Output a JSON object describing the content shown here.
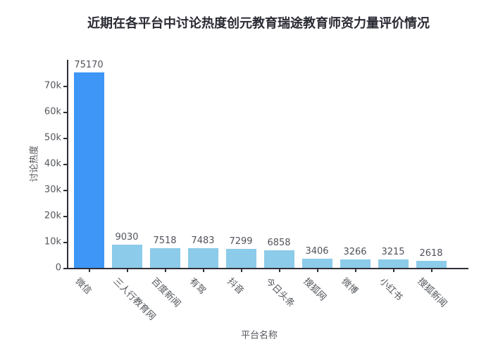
{
  "chart_data": {
    "type": "bar",
    "title": "近期在各平台中讨论热度创元教育瑞途教育师资力量评价情况",
    "xlabel": "平台名称",
    "ylabel": "讨论热度",
    "categories": [
      "微信",
      "三人行教育网",
      "百度新闻",
      "有驾",
      "抖音",
      "今日头条",
      "搜狐网",
      "微博",
      "小红书",
      "搜狐新闻"
    ],
    "values": [
      75170,
      9030,
      7518,
      7483,
      7299,
      6858,
      3406,
      3266,
      3215,
      2618
    ],
    "value_labels": [
      "75170",
      "9030",
      "7518",
      "7483",
      "7299",
      "6858",
      "3406",
      "3266",
      "3215",
      "2618"
    ],
    "ylim": [
      0,
      80000
    ],
    "ytick_values": [
      0,
      10000,
      20000,
      30000,
      40000,
      50000,
      60000,
      70000
    ],
    "ytick_labels": [
      "0",
      "10k",
      "20k",
      "30k",
      "40k",
      "50k",
      "60k",
      "70k"
    ],
    "grid": false,
    "legend": "none",
    "highlight_index": 0,
    "colors": {
      "bar_highlight": "#3E96F6",
      "bar_default": "#8CCBE9",
      "axis": "#30303a",
      "tick_label": "#54565c",
      "value_label": "#50535a",
      "title": "#2a2a33",
      "background": "#ffffff"
    }
  }
}
